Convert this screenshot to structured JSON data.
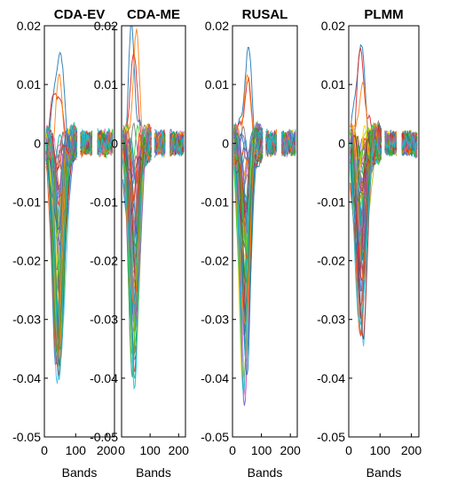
{
  "chart_data": [
    {
      "type": "line",
      "title": "CDA-EV",
      "xlabel": "Bands",
      "ylabel": "",
      "xlim": [
        0,
        224
      ],
      "ylim": [
        -0.05,
        0.02
      ],
      "xticks": [
        0,
        100,
        200
      ],
      "yticks": [
        0.02,
        0.01,
        0,
        -0.01,
        -0.02,
        -0.03,
        -0.04,
        -0.05
      ],
      "ytick_labels": [
        "0.02",
        "0.01",
        "0",
        "-0.01",
        "-0.02",
        "-0.03",
        "-0.04",
        "-0.05"
      ],
      "series_count": 60,
      "trough_band": 45,
      "max_value": 0.017,
      "min_value": -0.041
    },
    {
      "type": "line",
      "title": "CDA-ME",
      "xlabel": "Bands",
      "ylabel": "",
      "xlim": [
        0,
        224
      ],
      "ylim": [
        -0.05,
        0.02
      ],
      "xticks": [
        0,
        100,
        200
      ],
      "yticks": [
        0.02,
        0.01,
        0,
        -0.01,
        -0.02,
        -0.03,
        -0.04,
        -0.05
      ],
      "ytick_labels": [
        "0.02",
        "0.01",
        "0",
        "-0.01",
        "-0.02",
        "-0.03",
        "-0.04",
        "-0.05"
      ],
      "series_count": 60,
      "trough_band": 45,
      "max_value": 0.019,
      "min_value": -0.04
    },
    {
      "type": "line",
      "title": "RUSAL",
      "xlabel": "Bands",
      "ylabel": "",
      "xlim": [
        0,
        224
      ],
      "ylim": [
        -0.05,
        0.02
      ],
      "xticks": [
        0,
        100,
        200
      ],
      "yticks": [
        0.02,
        0.01,
        0,
        -0.01,
        -0.02,
        -0.03,
        -0.04,
        -0.05
      ],
      "ytick_labels": [
        "0.02",
        "0.01",
        "0",
        "-0.01",
        "-0.02",
        "-0.03",
        "-0.04",
        "-0.05"
      ],
      "series_count": 60,
      "trough_band": 45,
      "max_value": 0.015,
      "min_value": -0.042
    },
    {
      "type": "line",
      "title": "PLMM",
      "xlabel": "Bands",
      "ylabel": "",
      "xlim": [
        0,
        224
      ],
      "ylim": [
        -0.05,
        0.02
      ],
      "xticks": [
        0,
        100,
        200
      ],
      "yticks": [
        0.02,
        0.01,
        0,
        -0.01,
        -0.02,
        -0.03,
        -0.04,
        -0.05
      ],
      "ytick_labels": [
        "0.02",
        "0.01",
        "0",
        "-0.01",
        "-0.02",
        "-0.03",
        "-0.04",
        "-0.05"
      ],
      "series_count": 60,
      "trough_band": 40,
      "max_value": 0.017,
      "min_value": -0.032
    }
  ],
  "palette": [
    "#1f77b4",
    "#d62728",
    "#ff7f0e",
    "#2ca02c",
    "#9467bd",
    "#17becf",
    "#bcbd22",
    "#8c564b",
    "#e377c2",
    "#7f7f7f",
    "#3fbfef",
    "#ffd700",
    "#00bfa0",
    "#a52a2a",
    "#6a5acd",
    "#ff4500",
    "#32cd32",
    "#4682b4"
  ]
}
